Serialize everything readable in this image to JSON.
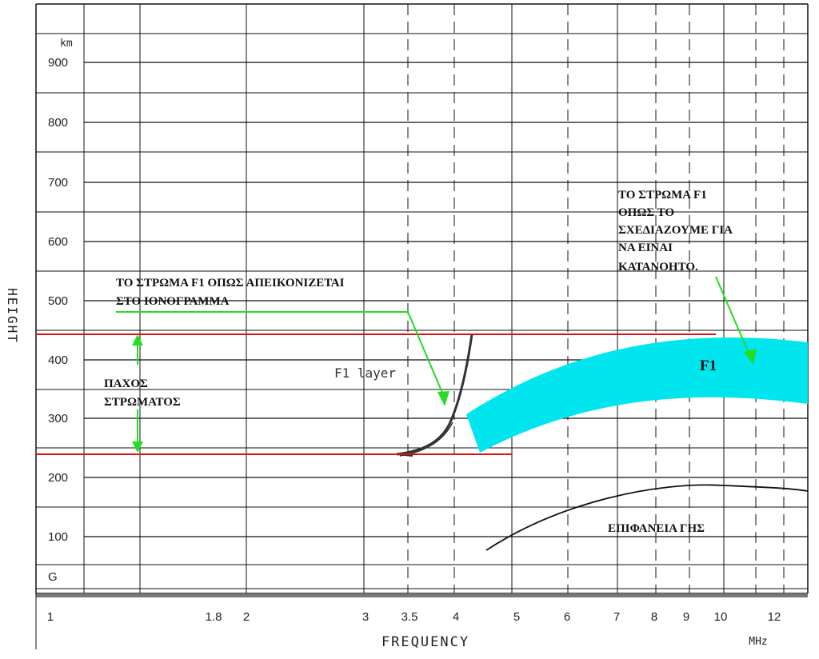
{
  "y_axis": {
    "title": "HEIGHT",
    "unit": "km",
    "ticks": [
      "900",
      "800",
      "700",
      "600",
      "500",
      "400",
      "300",
      "200",
      "100",
      "G"
    ]
  },
  "x_axis": {
    "title": "FREQUENCY",
    "unit": "MHz",
    "ticks": [
      "1",
      "1.8",
      "2",
      "3",
      "3.5",
      "4",
      "5",
      "6",
      "7",
      "8",
      "9",
      "10",
      "12"
    ]
  },
  "annotations": {
    "ionogram_label": "ΤΟ ΣΤΡΩΜΑ F1 ΟΠΩΣ ΑΠΕΙΚΟΝΙΖΕΤΑΙ ΣΤΟ ΙΟΝΟΓΡΑΜΜΑ",
    "ionogram_label_lines": [
      "ΤΟ ΣΤΡΩΜΑ F1 ΟΠΩΣ ΑΠΕΙΚΟΝΙΖΕΤΑΙ",
      "ΣΤΟ ΙΟΝΟΓΡΑΜΜΑ"
    ],
    "drawn_label": "ΤΟ ΣΤΡΩΜΑ F1 ΟΠΩΣ ΤΟ ΣΧΕΔΙΑΖΟΥΜΕ ΓΙΑ ΝΑ ΕΙΝΑΙ ΚΑΤΑΝΟΗΤΟ.",
    "drawn_label_lines": [
      "ΤΟ ΣΤΡΩΜΑ F1",
      "ΟΠΩΣ ΤΟ",
      "ΣΧΕΔΙΑΖΟΥΜΕ ΓΙΑ",
      "ΝΑ ΕΙΝΑΙ",
      "ΚΑΤΑΝΟΗΤΟ."
    ],
    "thickness_label": "ΠΑΧΟΣ ΣΤΡΩΜΑΤΟΣ",
    "thickness_label_lines": [
      "ΠΑΧΟΣ",
      "ΣΤΡΩΜΑΤΟΣ"
    ],
    "trace_label": "F1 layer",
    "band_label": "F1",
    "ground_label": "ΕΠΙΦΑΝΕΙΑ ΓΗΣ"
  },
  "colors": {
    "layer_band": "#00e5ee",
    "boundary_lines": "#e01010",
    "arrows": "#22dd22",
    "grid": "#111111",
    "trace": "#333333"
  }
}
